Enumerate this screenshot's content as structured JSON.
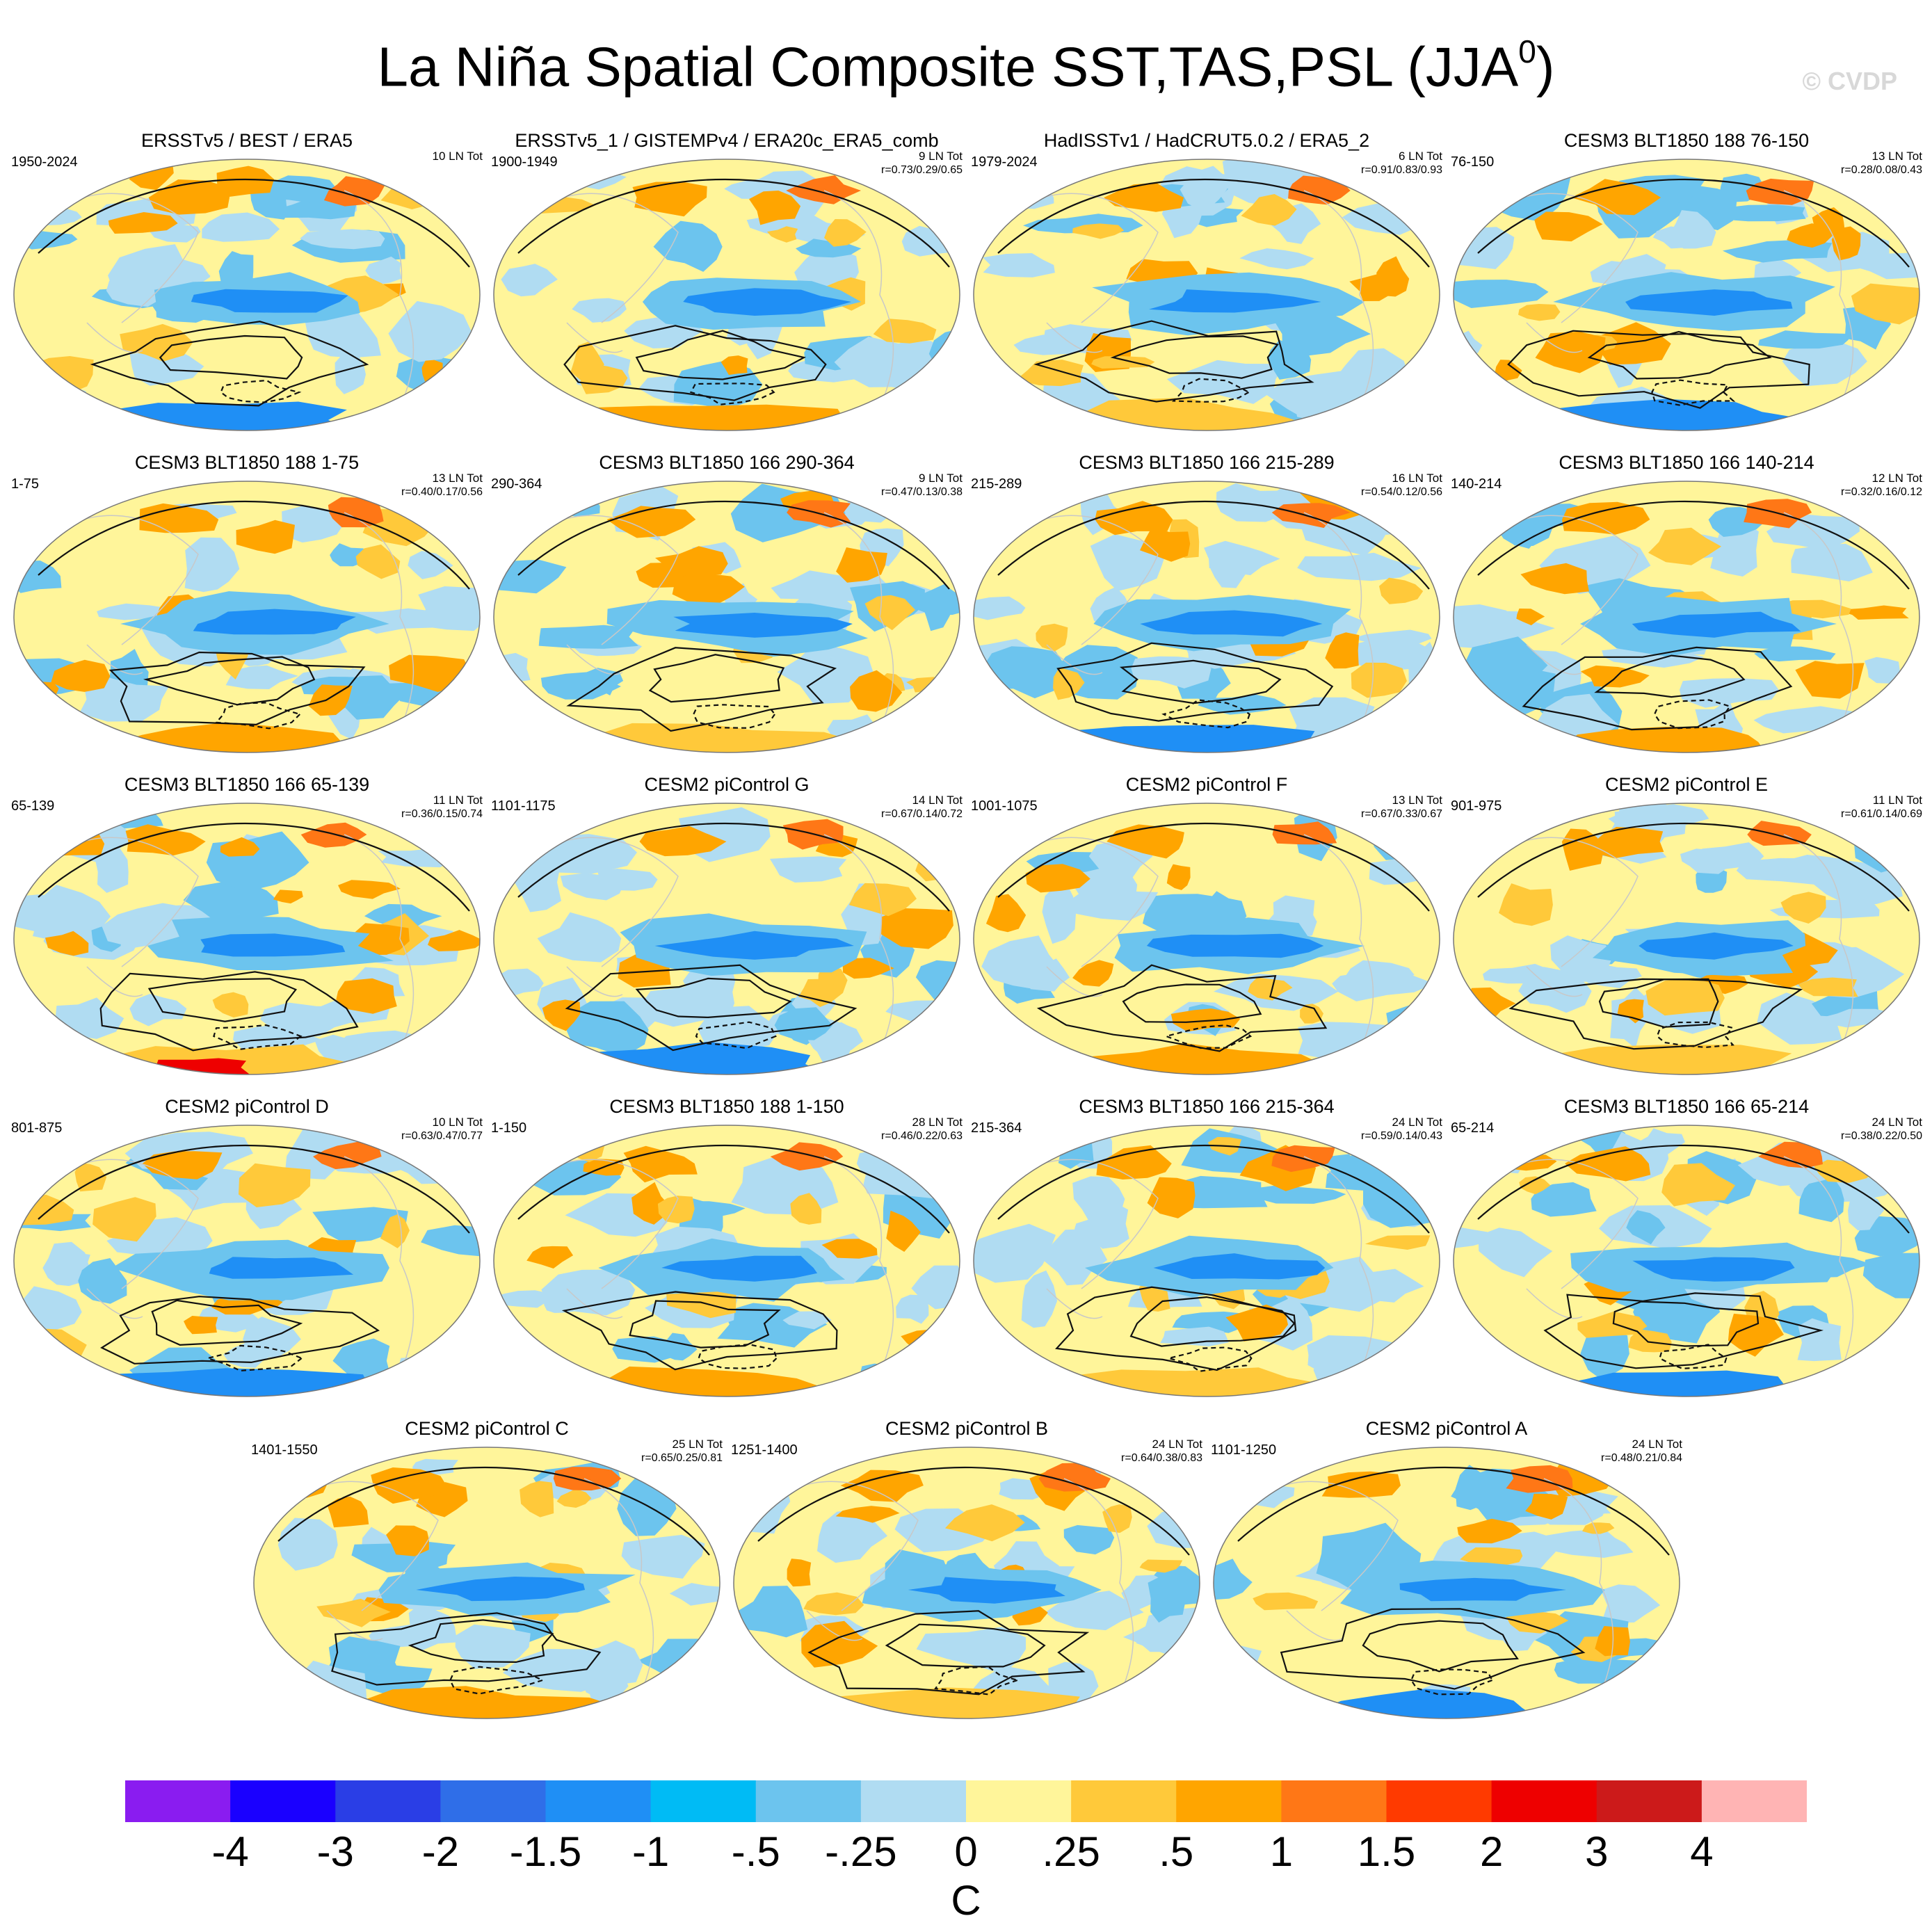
{
  "title": {
    "main": "La Niña Spatial Composite SST,TAS,PSL (JJA",
    "superscript": "0",
    "close": ")"
  },
  "copyright": "© CVDP",
  "panels": [
    {
      "title": "ERSSTv5 / BEST / ERA5",
      "years": "1950-2024",
      "count": "10 LN Tot",
      "corr": ""
    },
    {
      "title": "ERSSTv5_1 / GISTEMPv4 / ERA20c_ERA5_comb",
      "years": "1900-1949",
      "count": "9 LN Tot",
      "corr": "r=0.73/0.29/0.65"
    },
    {
      "title": "HadISSTv1 / HadCRUT5.0.2 / ERA5_2",
      "years": "1979-2024",
      "count": "6 LN Tot",
      "corr": "r=0.91/0.83/0.93"
    },
    {
      "title": "CESM3 BLT1850 188 76-150",
      "years": "76-150",
      "count": "13 LN Tot",
      "corr": "r=0.28/0.08/0.43"
    },
    {
      "title": "CESM3 BLT1850 188 1-75",
      "years": "1-75",
      "count": "13 LN Tot",
      "corr": "r=0.40/0.17/0.56"
    },
    {
      "title": "CESM3 BLT1850 166 290-364",
      "years": "290-364",
      "count": "9 LN Tot",
      "corr": "r=0.47/0.13/0.38"
    },
    {
      "title": "CESM3 BLT1850 166 215-289",
      "years": "215-289",
      "count": "16 LN Tot",
      "corr": "r=0.54/0.12/0.56"
    },
    {
      "title": "CESM3 BLT1850 166 140-214",
      "years": "140-214",
      "count": "12 LN Tot",
      "corr": "r=0.32/0.16/0.12"
    },
    {
      "title": "CESM3 BLT1850 166 65-139",
      "years": "65-139",
      "count": "11 LN Tot",
      "corr": "r=0.36/0.15/0.74"
    },
    {
      "title": "CESM2 piControl G",
      "years": "1101-1175",
      "count": "14 LN Tot",
      "corr": "r=0.67/0.14/0.72"
    },
    {
      "title": "CESM2 piControl F",
      "years": "1001-1075",
      "count": "13 LN Tot",
      "corr": "r=0.67/0.33/0.67"
    },
    {
      "title": "CESM2 piControl E",
      "years": "901-975",
      "count": "11 LN Tot",
      "corr": "r=0.61/0.14/0.69"
    },
    {
      "title": "CESM2 piControl D",
      "years": "801-875",
      "count": "10 LN Tot",
      "corr": "r=0.63/0.47/0.77"
    },
    {
      "title": "CESM3 BLT1850 188 1-150",
      "years": "1-150",
      "count": "28 LN Tot",
      "corr": "r=0.46/0.22/0.63"
    },
    {
      "title": "CESM3 BLT1850 166 215-364",
      "years": "215-364",
      "count": "24 LN Tot",
      "corr": "r=0.59/0.14/0.43"
    },
    {
      "title": "CESM3 BLT1850 166 65-214",
      "years": "65-214",
      "count": "24 LN Tot",
      "corr": "r=0.38/0.22/0.50"
    },
    {
      "title": "CESM2 piControl C",
      "years": "1401-1550",
      "count": "25 LN Tot",
      "corr": "r=0.65/0.25/0.81"
    },
    {
      "title": "CESM2 piControl B",
      "years": "1251-1400",
      "count": "24 LN Tot",
      "corr": "r=0.64/0.38/0.83"
    },
    {
      "title": "CESM2 piControl A",
      "years": "1101-1250",
      "count": "24 LN Tot",
      "corr": "r=0.48/0.21/0.84"
    }
  ],
  "colorbar": {
    "colors": [
      "#8a1cf0",
      "#1a00ff",
      "#2a3ee6",
      "#2f6ee8",
      "#1f8ff5",
      "#00bbf5",
      "#6cc4ee",
      "#b0dcf2",
      "#fff59a",
      "#ffc93a",
      "#ffa500",
      "#ff7716",
      "#ff3a00",
      "#ee0000",
      "#cc1a1a",
      "#ffb4b4"
    ],
    "ticks": [
      "-4",
      "-3",
      "-2",
      "-1.5",
      "-1",
      "-.5",
      "-.25",
      "0",
      ".25",
      ".5",
      "1",
      "1.5",
      "2",
      "3",
      "4"
    ],
    "unit": "C"
  },
  "map_palette": {
    "cold_strong": "#1f8ff5",
    "cold": "#6cc4ee",
    "cool": "#b0dcf2",
    "warm": "#fff59a",
    "warm2": "#ffc93a",
    "hot": "#ffa500",
    "hot2": "#ff7716",
    "extreme": "#ee0000",
    "ice": "#ffffff",
    "outline": "#777777",
    "contour": "#111111",
    "coast": "#c8c8c8"
  }
}
